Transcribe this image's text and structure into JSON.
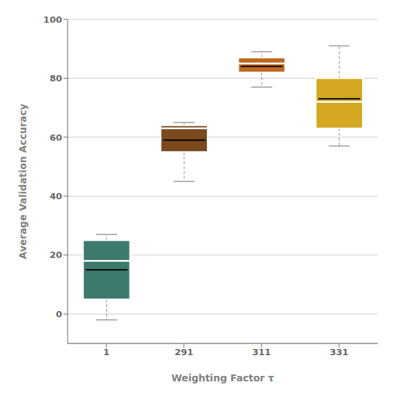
{
  "chart_data": {
    "type": "box",
    "categories": [
      "1",
      "291",
      "311",
      "331"
    ],
    "boxes": [
      {
        "whisker_low": -2,
        "q1": 5,
        "median": 18,
        "mean": 15,
        "q3": 25,
        "whisker_high": 27
      },
      {
        "whisker_low": 45,
        "q1": 55,
        "median": 63,
        "mean": 59,
        "q3": 64,
        "whisker_high": 65
      },
      {
        "whisker_low": 77,
        "q1": 82,
        "median": 85,
        "mean": 84,
        "q3": 87,
        "whisker_high": 89
      },
      {
        "whisker_low": 57,
        "q1": 63,
        "median": 72,
        "mean": 73,
        "q3": 80,
        "whisker_high": 91
      }
    ],
    "colors": [
      "#3d7a6e",
      "#7a4a1e",
      "#c06820",
      "#d4a820"
    ],
    "xlabel": "Weighting Factor τ",
    "ylabel": "Average Validation Accuracy",
    "ylim": [
      -10,
      100
    ],
    "yticks": [
      0,
      20,
      40,
      60,
      80,
      100
    ],
    "grid": true
  }
}
